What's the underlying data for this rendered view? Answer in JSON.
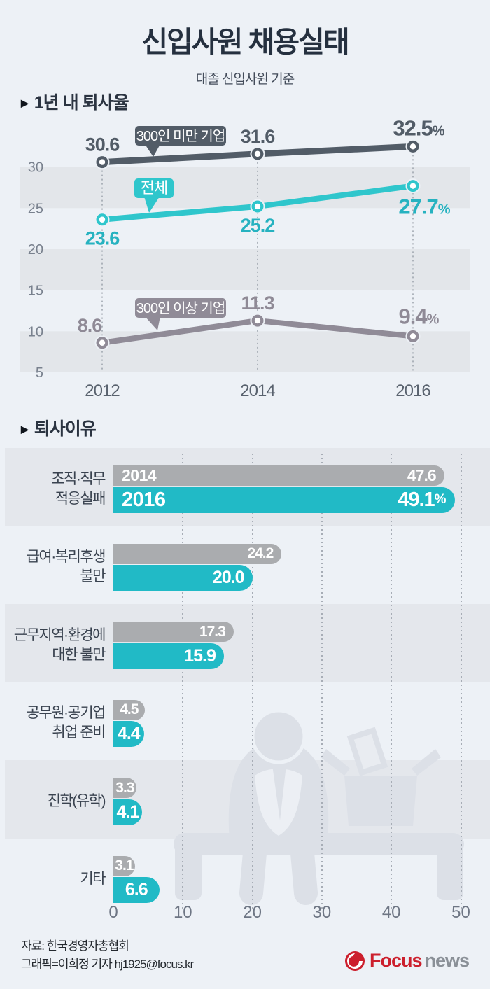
{
  "header": {
    "title": "신입사원 채용실태",
    "subtitle": "대졸 신입사원 기준"
  },
  "sections": {
    "turnover_heading": "1년 내 퇴사율",
    "reasons_heading": "퇴사이유"
  },
  "chart_data": [
    {
      "type": "line",
      "title": "1년 내 퇴사율",
      "x": [
        "2012",
        "2014",
        "2016"
      ],
      "ylabel": "",
      "ylim": [
        5,
        34
      ],
      "yticks": [
        30,
        25,
        20,
        15,
        10,
        5
      ],
      "unit_on_last_point": "%",
      "grid": "alternating-bands",
      "series": [
        {
          "name": "300인 미만 기업",
          "values": [
            30.6,
            31.6,
            32.5
          ],
          "color": "#525c67",
          "label_color": "#525c67"
        },
        {
          "name": "전체",
          "values": [
            23.6,
            25.2,
            27.7
          ],
          "color": "#2fc6cc",
          "label_color": "#26b2c0"
        },
        {
          "name": "300인 이상 기업",
          "values": [
            8.6,
            11.3,
            9.4
          ],
          "color": "#908b97",
          "label_color": "#8f8a96"
        }
      ]
    },
    {
      "type": "bar",
      "title": "퇴사이유",
      "orientation": "horizontal",
      "categories": [
        "조직·직무 적응실패",
        "급여·복리후생 불만",
        "근무지역·환경에 대한 불만",
        "공무원·공기업 취업 준비",
        "진학(유학)",
        "기타"
      ],
      "category_lines": [
        [
          "조직·직무",
          "적응실패"
        ],
        [
          "급여·복리후생",
          "불만"
        ],
        [
          "근무지역·환경에",
          "대한 불만"
        ],
        [
          "공무원·공기업",
          "취업 준비"
        ],
        [
          "진학(유학)"
        ],
        [
          "기타"
        ]
      ],
      "series": [
        {
          "name": "2014",
          "values": [
            47.6,
            24.2,
            17.3,
            4.5,
            3.3,
            3.1
          ],
          "color": "#aaacaf"
        },
        {
          "name": "2016",
          "values": [
            49.1,
            20.0,
            15.9,
            4.4,
            4.1,
            6.6
          ],
          "color": "#21bac6"
        }
      ],
      "unit_on_first_category": "%",
      "xticks": [
        0,
        10,
        20,
        30,
        40,
        50
      ],
      "xlim": [
        0,
        54
      ],
      "legend_position": "inside-first-bars"
    }
  ],
  "footer": {
    "source": "자료: 한국경영자총협회",
    "credit": "그래픽=이희정 기자 hj1925@focus.kr",
    "logo": {
      "brand": "Focus",
      "suffix": "news"
    }
  }
}
